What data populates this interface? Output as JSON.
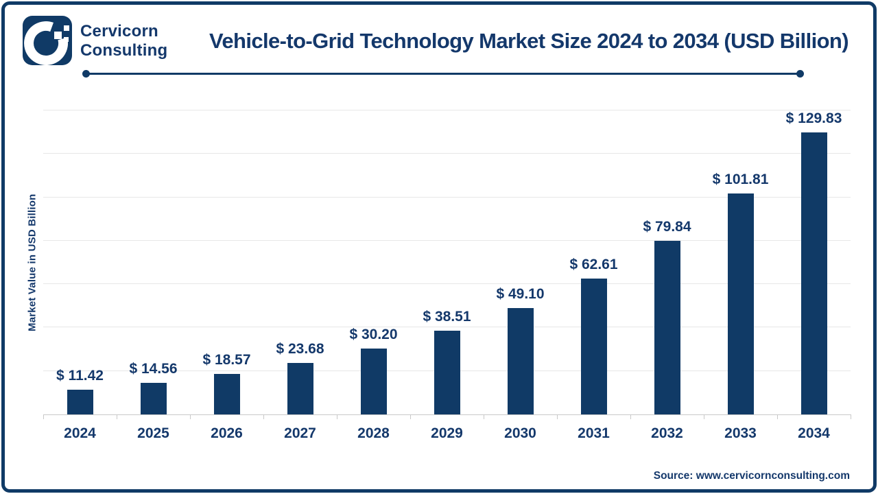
{
  "header": {
    "brand_line1": "Cervicorn",
    "brand_line2": "Consulting",
    "title": "Vehicle-to-Grid Technology Market Size 2024 to 2034 (USD Billion)"
  },
  "chart_data": {
    "type": "bar",
    "title": "Vehicle-to-Grid Technology Market Size 2024 to 2034 (USD Billion)",
    "categories": [
      "2024",
      "2025",
      "2026",
      "2027",
      "2028",
      "2029",
      "2030",
      "2031",
      "2032",
      "2033",
      "2034"
    ],
    "values": [
      11.42,
      14.56,
      18.57,
      23.68,
      30.2,
      38.51,
      49.1,
      62.61,
      79.84,
      101.81,
      129.83
    ],
    "value_labels": [
      "$ 11.42",
      "$ 14.56",
      "$ 18.57",
      "$ 23.68",
      "$ 30.20",
      "$ 38.51",
      "$ 49.10",
      "$ 62.61",
      "$ 79.84",
      "$ 101.81",
      "$ 129.83"
    ],
    "xlabel": "",
    "ylabel": "Market Value in USD Billion",
    "ylim": [
      0,
      140
    ],
    "gridline_step": 20,
    "grid": true,
    "legend": false,
    "bar_color": "#103a66"
  },
  "footer": {
    "source": "Source: www.cervicornconsulting.com"
  },
  "colors": {
    "navy": "#103a66",
    "text_navy": "#14386b",
    "grid_line": "#e7e7e7",
    "axis_line": "#c9c9c9",
    "background": "#ffffff"
  }
}
